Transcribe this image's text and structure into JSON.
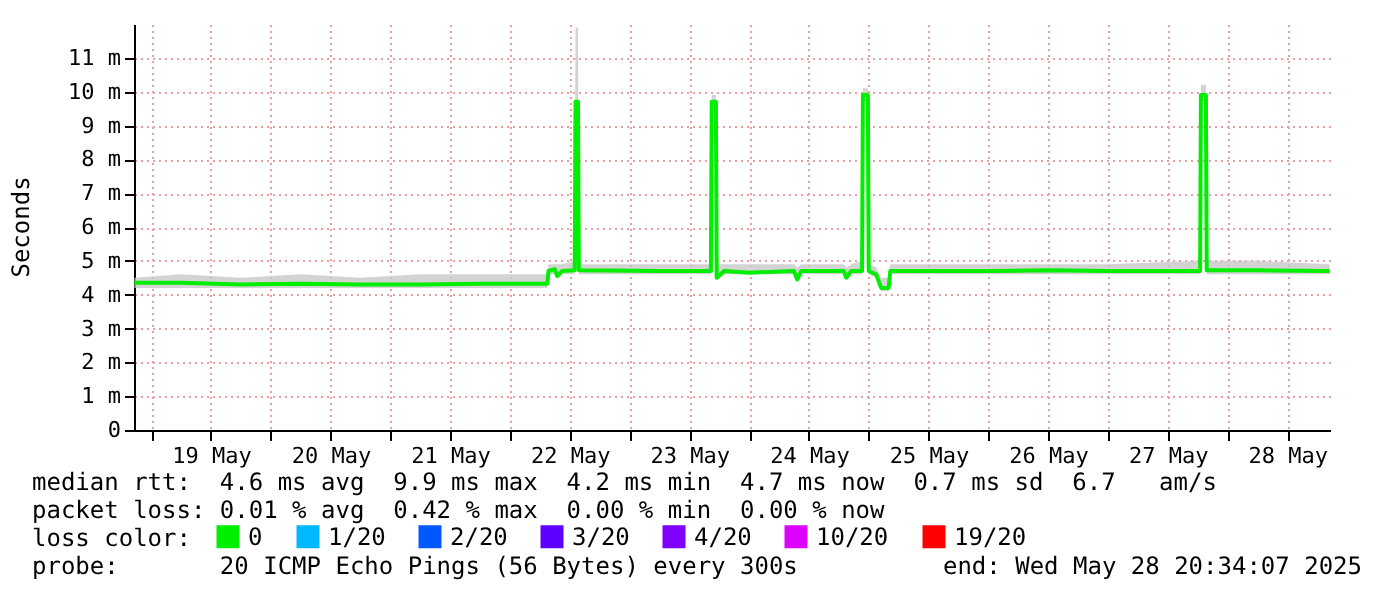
{
  "chart_data": {
    "type": "line",
    "ylabel": "Seconds",
    "legend_title": "loss color:",
    "x": [
      "2025-05-18T20:40",
      "2025-05-19T06:00",
      "2025-05-19T18:00",
      "2025-05-20T06:00",
      "2025-05-20T18:00",
      "2025-05-21T06:00",
      "2025-05-21T18:00",
      "2025-05-22T07:30",
      "2025-05-22T07:45",
      "2025-05-22T09:00",
      "2025-05-22T09:30",
      "2025-05-22T10:30",
      "2025-05-22T13:00",
      "2025-05-22T13:10",
      "2025-05-22T13:40",
      "2025-05-22T13:50",
      "2025-05-23T06:00",
      "2025-05-23T16:20",
      "2025-05-23T16:30",
      "2025-05-23T17:20",
      "2025-05-23T17:30",
      "2025-05-23T19:00",
      "2025-05-24T00:00",
      "2025-05-24T09:00",
      "2025-05-24T09:40",
      "2025-05-24T10:30",
      "2025-05-24T19:00",
      "2025-05-24T19:30",
      "2025-05-24T20:30",
      "2025-05-24T22:40",
      "2025-05-24T22:50",
      "2025-05-24T23:50",
      "2025-05-25T00:00",
      "2025-05-25T01:30",
      "2025-05-25T02:30",
      "2025-05-25T04:00",
      "2025-05-25T04:20",
      "2025-05-26T00:00",
      "2025-05-26T12:00",
      "2025-05-27T00:00",
      "2025-05-27T18:30",
      "2025-05-27T18:40",
      "2025-05-27T19:40",
      "2025-05-27T19:50",
      "2025-05-28T06:00",
      "2025-05-28T20:30"
    ],
    "series": [
      {
        "name": "0",
        "color": "#00ee00",
        "values": [
          4.35,
          4.35,
          4.3,
          4.32,
          4.3,
          4.3,
          4.32,
          4.32,
          4.7,
          4.75,
          4.55,
          4.7,
          4.72,
          9.7,
          9.7,
          4.72,
          4.7,
          4.7,
          9.7,
          9.7,
          4.5,
          4.7,
          4.65,
          4.7,
          4.45,
          4.7,
          4.7,
          4.5,
          4.7,
          4.7,
          9.9,
          9.9,
          4.7,
          4.6,
          4.2,
          4.2,
          4.7,
          4.7,
          4.72,
          4.7,
          4.7,
          9.9,
          9.9,
          4.72,
          4.72,
          4.7
        ],
        "lower": [
          4.2,
          4.2,
          4.2,
          4.2,
          4.2,
          4.2,
          4.2,
          4.2,
          4.6,
          4.6,
          4.5,
          4.6,
          4.6,
          9.6,
          9.6,
          4.6,
          4.6,
          4.6,
          9.6,
          9.6,
          4.5,
          4.6,
          4.6,
          4.6,
          4.4,
          4.6,
          4.6,
          4.5,
          4.6,
          4.6,
          9.7,
          9.7,
          4.6,
          4.5,
          4.1,
          4.1,
          4.6,
          4.6,
          4.6,
          4.6,
          4.6,
          9.7,
          9.7,
          4.6,
          4.6,
          4.6
        ],
        "upper": [
          4.5,
          4.6,
          4.5,
          4.6,
          4.5,
          4.6,
          4.6,
          4.6,
          4.9,
          4.9,
          4.9,
          4.9,
          5.0,
          11.9,
          11.9,
          4.9,
          4.9,
          4.9,
          9.9,
          9.9,
          4.9,
          4.9,
          4.9,
          4.9,
          4.8,
          4.9,
          4.9,
          4.8,
          4.9,
          5.0,
          10.1,
          10.1,
          4.9,
          4.8,
          4.5,
          4.5,
          4.9,
          4.9,
          4.9,
          4.9,
          5.0,
          10.2,
          10.2,
          5.0,
          5.0,
          4.9
        ]
      },
      {
        "name": "1/20",
        "color": "#00b8ff",
        "values": [
          null,
          null,
          null,
          null,
          null,
          null,
          null,
          null,
          null,
          null,
          null,
          null,
          null,
          null,
          null,
          null,
          null,
          null,
          null,
          null,
          null,
          null,
          null,
          null,
          null,
          null,
          null,
          null,
          null,
          null,
          null,
          null,
          null,
          null,
          null,
          null,
          null,
          null,
          null,
          null,
          null,
          null,
          null,
          null,
          null,
          null
        ]
      },
      {
        "name": "2/20",
        "color": "#0059ff",
        "values": [
          null,
          null,
          null,
          null,
          null,
          null,
          null,
          null,
          null,
          null,
          null,
          null,
          null,
          null,
          null,
          null,
          null,
          null,
          null,
          null,
          null,
          null,
          null,
          null,
          null,
          null,
          null,
          null,
          null,
          null,
          null,
          null,
          null,
          null,
          null,
          null,
          null,
          null,
          null,
          null,
          null,
          null,
          null,
          null,
          null,
          null
        ]
      },
      {
        "name": "3/20",
        "color": "#5e00ff",
        "values": [
          null,
          null,
          null,
          null,
          null,
          null,
          null,
          null,
          null,
          null,
          null,
          null,
          null,
          null,
          null,
          null,
          null,
          null,
          null,
          null,
          null,
          null,
          null,
          null,
          null,
          null,
          null,
          null,
          null,
          null,
          null,
          null,
          null,
          null,
          null,
          null,
          null,
          null,
          null,
          null,
          null,
          null,
          null,
          null,
          null,
          null
        ]
      },
      {
        "name": "4/20",
        "color": "#7e00ff",
        "values": [
          null,
          null,
          null,
          null,
          null,
          null,
          null,
          null,
          null,
          null,
          null,
          null,
          null,
          null,
          null,
          null,
          null,
          null,
          null,
          null,
          null,
          null,
          null,
          null,
          null,
          null,
          null,
          null,
          null,
          null,
          null,
          null,
          null,
          null,
          null,
          null,
          null,
          null,
          null,
          null,
          null,
          null,
          null,
          null,
          null,
          null
        ]
      },
      {
        "name": "10/20",
        "color": "#dd00ff",
        "values": [
          null,
          null,
          null,
          null,
          null,
          null,
          null,
          null,
          null,
          null,
          null,
          null,
          null,
          null,
          null,
          null,
          null,
          null,
          null,
          null,
          null,
          null,
          null,
          null,
          null,
          null,
          null,
          null,
          null,
          null,
          null,
          null,
          null,
          null,
          null,
          null,
          null,
          null,
          null,
          null,
          null,
          null,
          null,
          null,
          null,
          null
        ]
      },
      {
        "name": "19/20",
        "color": "#ff0000",
        "values": [
          null,
          null,
          null,
          null,
          null,
          null,
          null,
          null,
          null,
          null,
          null,
          null,
          null,
          null,
          null,
          null,
          null,
          null,
          null,
          null,
          null,
          null,
          null,
          null,
          null,
          null,
          null,
          null,
          null,
          null,
          null,
          null,
          null,
          null,
          null,
          null,
          null,
          null,
          null,
          null,
          null,
          null,
          null,
          null,
          null,
          null
        ]
      }
    ],
    "xlim": [
      "2025-05-18T20:34",
      "2025-05-28T20:34"
    ],
    "xticks": [
      {
        "value": "2025-05-19T00:00",
        "label": null
      },
      {
        "value": "2025-05-19T12:00",
        "label": "19 May"
      },
      {
        "value": "2025-05-20T00:00",
        "label": null
      },
      {
        "value": "2025-05-20T12:00",
        "label": "20 May"
      },
      {
        "value": "2025-05-21T00:00",
        "label": null
      },
      {
        "value": "2025-05-21T12:00",
        "label": "21 May"
      },
      {
        "value": "2025-05-22T00:00",
        "label": null
      },
      {
        "value": "2025-05-22T12:00",
        "label": "22 May"
      },
      {
        "value": "2025-05-23T00:00",
        "label": null
      },
      {
        "value": "2025-05-23T12:00",
        "label": "23 May"
      },
      {
        "value": "2025-05-24T00:00",
        "label": null
      },
      {
        "value": "2025-05-24T12:00",
        "label": "24 May"
      },
      {
        "value": "2025-05-25T00:00",
        "label": null
      },
      {
        "value": "2025-05-25T12:00",
        "label": "25 May"
      },
      {
        "value": "2025-05-26T00:00",
        "label": null
      },
      {
        "value": "2025-05-26T12:00",
        "label": "26 May"
      },
      {
        "value": "2025-05-27T00:00",
        "label": null
      },
      {
        "value": "2025-05-27T12:00",
        "label": "27 May"
      },
      {
        "value": "2025-05-28T00:00",
        "label": null
      },
      {
        "value": "2025-05-28T12:00",
        "label": "28 May"
      }
    ],
    "ylim": [
      0,
      12
    ],
    "yticks": [
      0,
      {
        "value": 1,
        "label": "1 m"
      },
      {
        "value": 2,
        "label": "2 m"
      },
      {
        "value": 3,
        "label": "3 m"
      },
      {
        "value": 4,
        "label": "4 m"
      },
      {
        "value": 5,
        "label": "5 m"
      },
      {
        "value": 6,
        "label": "6 m"
      },
      {
        "value": 7,
        "label": "7 m"
      },
      {
        "value": 8,
        "label": "8 m"
      },
      {
        "value": 9,
        "label": "9 m"
      },
      {
        "value": 10,
        "label": "10 m"
      },
      {
        "value": 11,
        "label": "11 m"
      }
    ],
    "grid": true,
    "legend": "bottom",
    "marker": "none",
    "line_style": "solid",
    "annotations": [
      "median rtt:  4.6 ms avg  9.9 ms max  4.2 ms min  4.7 ms now  0.7 ms sd  6.7   am/s",
      "packet loss: 0.01 % avg  0.42 % max  0.00 % min  0.00 % now",
      "probe:       20 ICMP Echo Pings (56 Bytes) every 300s",
      "end: Wed May 28 20:34:07 2025"
    ]
  }
}
